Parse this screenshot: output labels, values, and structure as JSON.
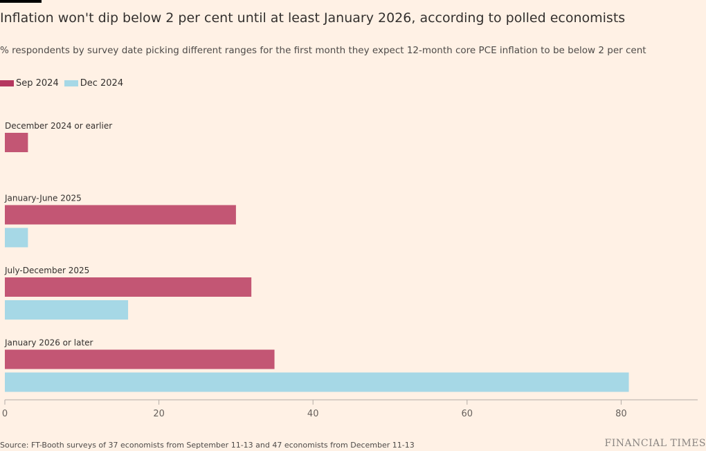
{
  "header": {
    "title": "Inflation won't dip below 2 per cent until at least January 2026, according to polled economists",
    "subtitle": "% respondents by survey date picking different ranges for the first month they expect 12-month core PCE inflation to be below 2 per cent"
  },
  "footer": {
    "source": "Source: FT-Booth surveys of 37 economists from September 11-13 and 47 economists from December 11-13",
    "brand": "FINANCIAL TIMES"
  },
  "colors": {
    "sep": "#c35674",
    "dec": "#a6d8e6",
    "legend_sep": "#b5375f",
    "axis": "#b3aca6",
    "background": "#fff1e5"
  },
  "chart_data": {
    "type": "bar",
    "orientation": "horizontal",
    "categories": [
      "December 2024 or earlier",
      "January-June 2025",
      "July-December 2025",
      "January 2026 or later"
    ],
    "series": [
      {
        "name": "Sep 2024",
        "values": [
          3,
          30,
          32,
          35
        ]
      },
      {
        "name": "Dec 2024",
        "values": [
          0,
          3,
          16,
          81
        ]
      }
    ],
    "xlim": [
      0,
      90
    ],
    "xticks": [
      0,
      20,
      40,
      60,
      80
    ],
    "legend_position": "top-left",
    "grid": false
  }
}
